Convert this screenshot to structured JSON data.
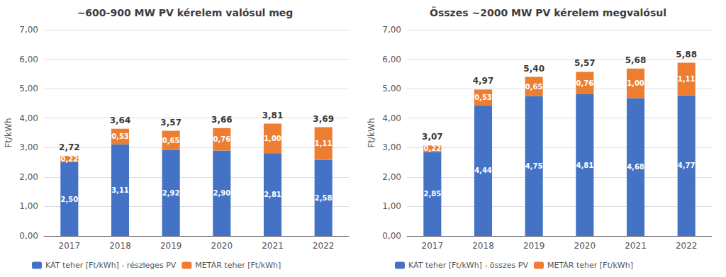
{
  "chart_data": [
    {
      "type": "bar",
      "title": "~600-900 MW PV kérelem valósul meg",
      "stacked": true,
      "categories": [
        "2017",
        "2018",
        "2019",
        "2020",
        "2021",
        "2022"
      ],
      "series": [
        {
          "name": "KÁT teher [Ft/kWh] - részleges PV",
          "color": "#4472C4",
          "values": [
            2.5,
            3.11,
            2.92,
            2.9,
            2.81,
            2.58
          ],
          "value_labels": [
            "2,50",
            "3,11",
            "2,92",
            "2,90",
            "2,81",
            "2,58"
          ]
        },
        {
          "name": "METÁR teher [Ft/kWh]",
          "color": "#ED7D31",
          "values": [
            0.22,
            0.53,
            0.65,
            0.76,
            1.0,
            1.11
          ],
          "value_labels": [
            "0,22",
            "0,53",
            "0,65",
            "0,76",
            "1,00",
            "1,11"
          ]
        }
      ],
      "totals": [
        2.72,
        3.64,
        3.57,
        3.66,
        3.81,
        3.69
      ],
      "total_labels": [
        "2,72",
        "3,64",
        "3,57",
        "3,66",
        "3,81",
        "3,69"
      ],
      "ylabel": "Ft/kWh",
      "ylim": [
        0,
        7.0
      ],
      "yticks": [
        {
          "value": 0.0,
          "label": "0,00"
        },
        {
          "value": 1.0,
          "label": "1,00"
        },
        {
          "value": 2.0,
          "label": "2,00"
        },
        {
          "value": 3.0,
          "label": "3,00"
        },
        {
          "value": 4.0,
          "label": "4,00"
        },
        {
          "value": 5.0,
          "label": "5,00"
        },
        {
          "value": 6.0,
          "label": "6,00"
        },
        {
          "value": 7.0,
          "label": "7,00"
        }
      ],
      "grid": true,
      "data_labels": true,
      "legend": "bottom"
    },
    {
      "type": "bar",
      "title": "Összes ~2000 MW PV kérelem megvalósul",
      "stacked": true,
      "categories": [
        "2017",
        "2018",
        "2019",
        "2020",
        "2021",
        "2022"
      ],
      "series": [
        {
          "name": "KÁT teher [Ft/kWh] - összes PV",
          "color": "#4472C4",
          "values": [
            2.85,
            4.44,
            4.75,
            4.81,
            4.68,
            4.77
          ],
          "value_labels": [
            "2,85",
            "4,44",
            "4,75",
            "4,81",
            "4,68",
            "4,77"
          ]
        },
        {
          "name": "METÁR teher [Ft/kWh]",
          "color": "#ED7D31",
          "values": [
            0.22,
            0.53,
            0.65,
            0.76,
            1.0,
            1.11
          ],
          "value_labels": [
            "0,22",
            "0,53",
            "0,65",
            "0,76",
            "1,00",
            "1,11"
          ]
        }
      ],
      "totals": [
        3.07,
        4.97,
        5.4,
        5.57,
        5.68,
        5.88
      ],
      "total_labels": [
        "3,07",
        "4,97",
        "5,40",
        "5,57",
        "5,68",
        "5,88"
      ],
      "ylabel": "Ft/kWh",
      "ylim": [
        0,
        7.0
      ],
      "yticks": [
        {
          "value": 0.0,
          "label": "0,00"
        },
        {
          "value": 1.0,
          "label": "1,00"
        },
        {
          "value": 2.0,
          "label": "2,00"
        },
        {
          "value": 3.0,
          "label": "3,00"
        },
        {
          "value": 4.0,
          "label": "4,00"
        },
        {
          "value": 5.0,
          "label": "5,00"
        },
        {
          "value": 6.0,
          "label": "6,00"
        },
        {
          "value": 7.0,
          "label": "7,00"
        }
      ],
      "grid": true,
      "data_labels": true,
      "legend": "bottom"
    }
  ]
}
